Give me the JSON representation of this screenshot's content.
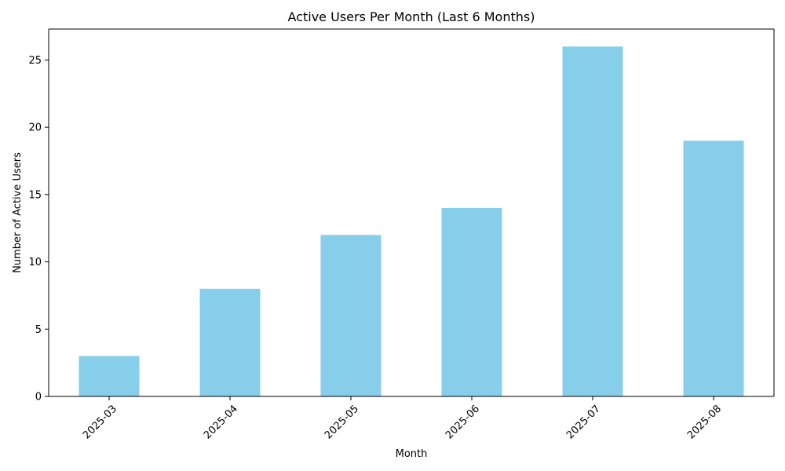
{
  "chart_data": {
    "type": "bar",
    "title": "Active Users Per Month (Last 6 Months)",
    "xlabel": "Month",
    "ylabel": "Number of Active Users",
    "categories": [
      "2025-03",
      "2025-04",
      "2025-05",
      "2025-06",
      "2025-07",
      "2025-08"
    ],
    "values": [
      3,
      8,
      12,
      14,
      26,
      19
    ],
    "ylim": [
      0,
      27.3
    ],
    "yticks": [
      0,
      5,
      10,
      15,
      20,
      25
    ],
    "grid": false,
    "bar_color": "#87CEEB",
    "xtick_rotation": 45
  }
}
